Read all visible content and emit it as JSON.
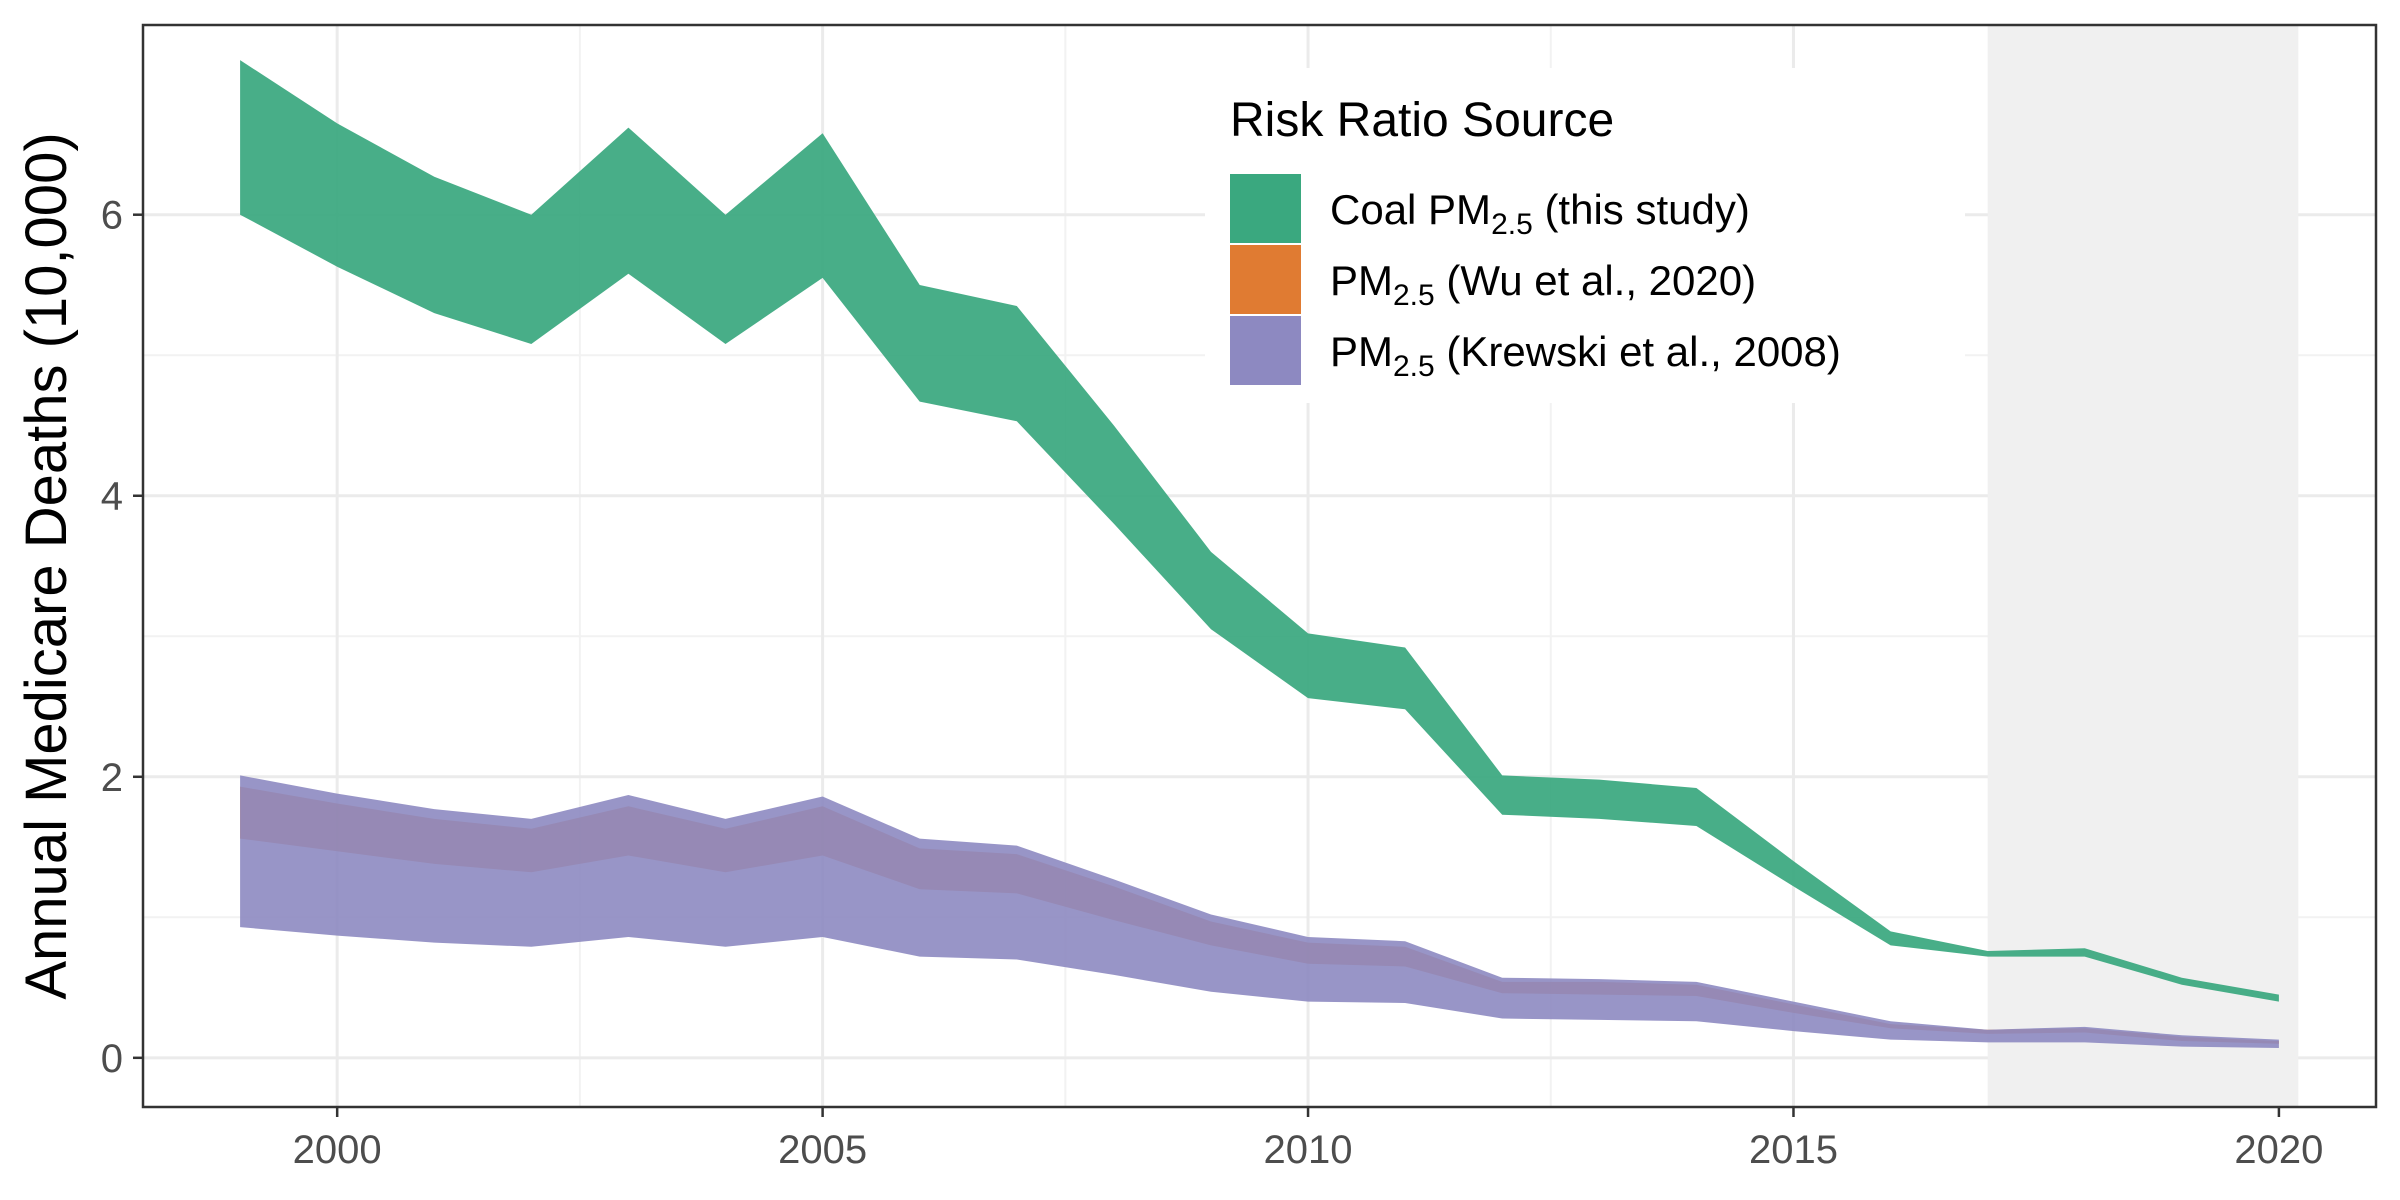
{
  "chart_data": {
    "type": "area",
    "title": "",
    "xlabel": "",
    "ylabel": "Annual Medicare Deaths (10,000)",
    "xlim": [
      1998,
      2021
    ],
    "ylim": [
      -0.35,
      7.35
    ],
    "x_ticks": [
      2000,
      2005,
      2010,
      2015,
      2020
    ],
    "y_ticks": [
      0,
      2,
      4,
      6
    ],
    "grid": true,
    "shaded_region": {
      "x_start": 2017,
      "x_end": 2020.2
    },
    "x": [
      1999,
      2000,
      2001,
      2002,
      2003,
      2004,
      2005,
      2006,
      2007,
      2008,
      2009,
      2010,
      2011,
      2012,
      2013,
      2014,
      2015,
      2016,
      2017,
      2018,
      2019,
      2020
    ],
    "legend": {
      "title": "Risk Ratio Source",
      "position": "top-right",
      "entries": [
        {
          "base": "Coal PM",
          "sub": "2.5",
          "rest": " (this study)",
          "color": "#3aa87f"
        },
        {
          "base": "PM",
          "sub": "2.5",
          "rest": " (Wu et al., 2020)",
          "color": "#e07b32"
        },
        {
          "base": "PM",
          "sub": "2.5",
          "rest": " (Krewski et al., 2008)",
          "color": "#8d89c1"
        }
      ]
    },
    "series": [
      {
        "name": "Coal PM2.5 (this study)",
        "color": "#3aa87f",
        "lower": [
          6.0,
          5.63,
          5.3,
          5.08,
          5.58,
          5.08,
          5.55,
          4.67,
          4.53,
          3.8,
          3.05,
          2.56,
          2.48,
          1.73,
          1.7,
          1.65,
          1.22,
          0.8,
          0.72,
          0.72,
          0.52,
          0.4
        ],
        "upper": [
          7.1,
          6.65,
          6.27,
          6.0,
          6.62,
          6.0,
          6.58,
          5.5,
          5.35,
          4.5,
          3.6,
          3.02,
          2.92,
          2.01,
          1.98,
          1.92,
          1.4,
          0.9,
          0.76,
          0.78,
          0.57,
          0.45
        ]
      },
      {
        "name": "PM2.5 (Wu et al., 2020)",
        "color": "#e07b32",
        "lower": [
          1.56,
          1.47,
          1.38,
          1.32,
          1.44,
          1.32,
          1.44,
          1.2,
          1.17,
          0.98,
          0.8,
          0.67,
          0.65,
          0.46,
          0.45,
          0.44,
          0.32,
          0.21,
          0.17,
          0.18,
          0.12,
          0.1
        ],
        "upper": [
          1.93,
          1.81,
          1.7,
          1.63,
          1.79,
          1.63,
          1.79,
          1.49,
          1.45,
          1.22,
          0.97,
          0.82,
          0.79,
          0.54,
          0.54,
          0.52,
          0.38,
          0.24,
          0.2,
          0.21,
          0.15,
          0.12
        ]
      },
      {
        "name": "PM2.5 (Krewski et al., 2008)",
        "color": "#8d89c1",
        "lower": [
          0.93,
          0.87,
          0.82,
          0.79,
          0.86,
          0.79,
          0.86,
          0.72,
          0.7,
          0.59,
          0.47,
          0.4,
          0.39,
          0.28,
          0.27,
          0.26,
          0.19,
          0.13,
          0.11,
          0.11,
          0.08,
          0.07
        ],
        "upper": [
          2.01,
          1.88,
          1.77,
          1.7,
          1.87,
          1.7,
          1.86,
          1.56,
          1.51,
          1.27,
          1.02,
          0.86,
          0.83,
          0.57,
          0.56,
          0.54,
          0.4,
          0.26,
          0.2,
          0.22,
          0.16,
          0.13
        ]
      }
    ]
  }
}
